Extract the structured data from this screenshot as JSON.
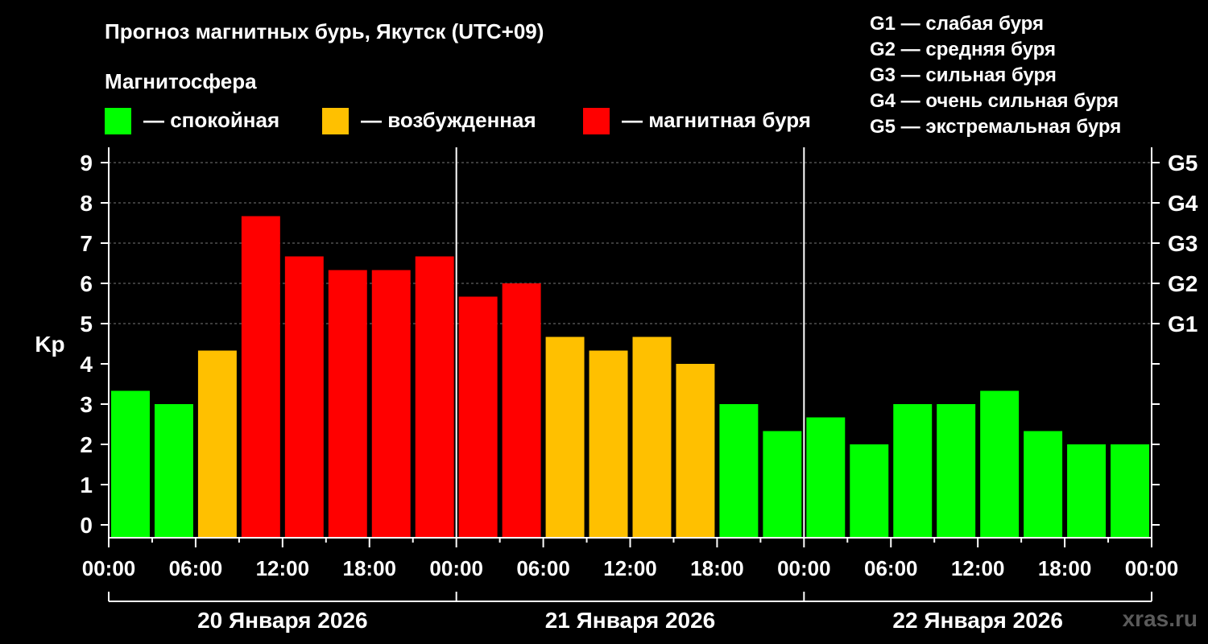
{
  "title": "Прогноз магнитных бурь, Якутск (UTC+09)",
  "legend": {
    "heading": "Магнитосфера",
    "items": [
      {
        "label": "— спокойная",
        "color": "#00ff00"
      },
      {
        "label": "— возбужденная",
        "color": "#ffc000"
      },
      {
        "label": "— магнитная буря",
        "color": "#ff0000"
      }
    ],
    "storm_scale": [
      "G1 — слабая буря",
      "G2 — средняя буря",
      "G3 — сильная буря",
      "G4 — очень сильная буря",
      "G5 — экстремальная буря"
    ]
  },
  "watermark": "xras.ru",
  "chart_data": {
    "type": "bar",
    "ylabel": "Kp",
    "ylim": [
      0,
      9
    ],
    "y_ticks": [
      "0",
      "1",
      "2",
      "3",
      "4",
      "5",
      "6",
      "7",
      "8",
      "9"
    ],
    "right_ticks": [
      {
        "value": 5,
        "label": "G1"
      },
      {
        "value": 6,
        "label": "G2"
      },
      {
        "value": 7,
        "label": "G3"
      },
      {
        "value": 8,
        "label": "G4"
      },
      {
        "value": 9,
        "label": "G5"
      }
    ],
    "x_tick_labels": [
      "00:00",
      "06:00",
      "12:00",
      "18:00",
      "00:00",
      "06:00",
      "12:00",
      "18:00",
      "00:00",
      "06:00",
      "12:00",
      "18:00",
      "00:00"
    ],
    "days": [
      "20 Января 2026",
      "21 Января 2026",
      "22 Января 2026"
    ],
    "interval_hours": 3,
    "values": [
      3.33,
      3.0,
      4.33,
      7.67,
      6.67,
      6.33,
      6.33,
      6.67,
      5.67,
      6.0,
      4.67,
      4.33,
      4.67,
      4.0,
      3.0,
      2.33,
      2.67,
      2.0,
      3.0,
      3.0,
      3.33,
      2.33,
      2.0,
      2.0
    ],
    "levels": [
      "quiet",
      "quiet",
      "active",
      "storm",
      "storm",
      "storm",
      "storm",
      "storm",
      "storm",
      "storm",
      "active",
      "active",
      "active",
      "active",
      "quiet",
      "quiet",
      "quiet",
      "quiet",
      "quiet",
      "quiet",
      "quiet",
      "quiet",
      "quiet",
      "quiet"
    ],
    "level_colors": {
      "quiet": "#00ff00",
      "active": "#ffc000",
      "storm": "#ff0000"
    },
    "grid": true
  }
}
